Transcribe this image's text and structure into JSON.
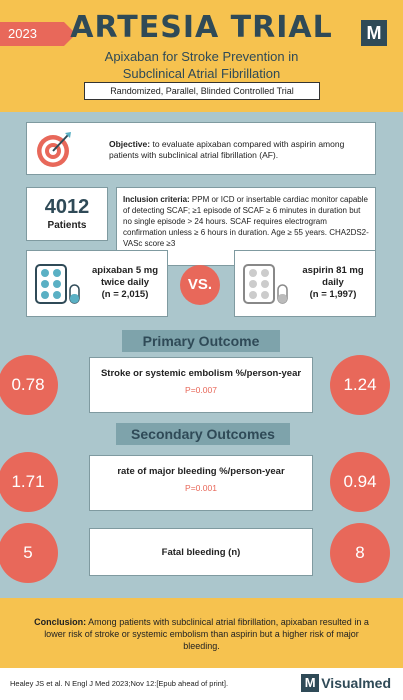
{
  "header": {
    "year": "2023",
    "title": "ARTESIA TRIAL",
    "subtitle": "Apixaban for Stroke Prevention in Subclinical Atrial Fibrillation",
    "design": "Randomized, Parallel, Blinded Controlled Trial",
    "logo_letter": "M"
  },
  "objective": {
    "label": "Objective:",
    "text": " to evaluate apixaban compared with aspirin among patients with subclinical atrial fibrillation (AF).",
    "icon": "target-icon"
  },
  "patients": {
    "count": "4012",
    "label": "Patients"
  },
  "inclusion": {
    "label": "Inclusion criteria:",
    "text": " PPM or ICD or insertable cardiac monitor capable of detecting SCAF; ≥1  episode of SCAF ≥ 6 minutes in duration but no single episode > 24 hours. SCAF requires electrogram confirmation unless ≥ 6 hours in duration. Age ≥ 55 years. CHA2DS2-VASc score ≥3"
  },
  "arms": {
    "left": {
      "drug": "apixaban 5 mg twice daily",
      "n": "(n = 2,015)"
    },
    "vs": "VS.",
    "right": {
      "drug": "aspirin 81 mg daily",
      "n": "(n = 1,997)"
    },
    "icon": "pill-pack-icon"
  },
  "primary": {
    "section_label": "Primary Outcome",
    "title": "Stroke or systemic embolism %/person-year",
    "p_value": "P=0.007",
    "left_value": "0.78",
    "right_value": "1.24"
  },
  "secondary": {
    "section_label": "Secondary Outcomes",
    "items": [
      {
        "title": "rate of major bleeding %/person-year",
        "p_value": "P=0.001",
        "left_value": "1.71",
        "right_value": "0.94"
      },
      {
        "title": "Fatal bleeding (n)",
        "p_value": "",
        "left_value": "5",
        "right_value": "8"
      }
    ]
  },
  "conclusion": {
    "label": "Conclusion:",
    "text": " Among patients with subclinical atrial fibrillation, apixaban resulted in a lower risk of stroke or systemic embolism than aspirin but a higher risk of major bleeding."
  },
  "footer": {
    "citation": "Healey JS et al. N Engl J Med 2023;Nov 12:[Epub ahead of print].",
    "brand_letter": "M",
    "brand_name": "Visualmed"
  },
  "colors": {
    "accent_red": "#e8685a",
    "header_yellow": "#f6c24f",
    "panel_blue": "#abc6cc",
    "dark_teal": "#2f4a57"
  }
}
